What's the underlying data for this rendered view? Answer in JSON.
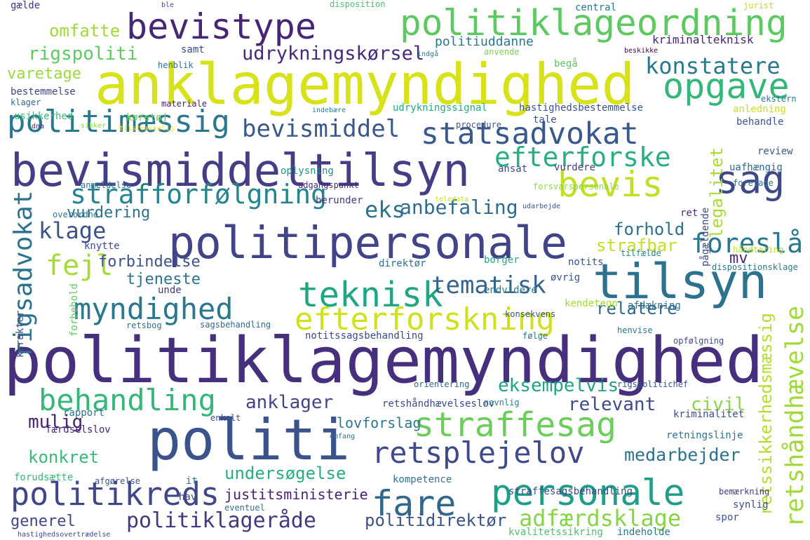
{
  "words": [
    "anklagemyndighed",
    "politiklagemyndighed",
    "politi",
    "bevismiddeltilsyn",
    "politipersonale",
    "tilsyn",
    "politiklageordning",
    "bevistype",
    "opgave",
    "statsadvokat",
    "teknisk",
    "straffesag",
    "personale",
    "fare",
    "retsplejelov",
    "politikreds",
    "sag",
    "bevis",
    "fejl",
    "myndighed",
    "efterforskning",
    "behandling",
    "konstatere",
    "politimæssig",
    "efterforske",
    "strafforfølgning",
    "foreslå",
    "tematisk",
    "rigsadvokat",
    "retshåndhævelse",
    "retssikkerhedsmæssig",
    "legalitet",
    "bevismiddel",
    "eks",
    "klage",
    "anbefaling",
    "udrykningskørsel",
    "omfatte",
    "rigspoliti",
    "varetage",
    "anklager",
    "eksempelvis",
    "relevant",
    "civil",
    "mulig",
    "undersøgelse",
    "medarbejder",
    "politiklageråde",
    "adfærdsklage",
    "politidirektør",
    "justitsministerie",
    "generel",
    "konkret",
    "relatere",
    "vurdering",
    "forhold",
    "strafbar",
    "forbindelse",
    "tjeneste",
    "lovforslag",
    "kriminalteknisk",
    "politiuddanne",
    "mv",
    "gælde",
    "ble",
    "disposition",
    "central",
    "jurist",
    "samt",
    "henblik",
    "indgå",
    "anvende",
    "begå",
    "beskikke",
    "bestemmelse",
    "klager",
    "materiale",
    "indebære",
    "udrykningssignal",
    "hastighedsbestemmelse",
    "anledning",
    "procedure",
    "tale",
    "usikkerhed",
    "køretøj",
    "dna",
    "sikker",
    "tilstrækkelig",
    "behandle",
    "ekstern",
    "review",
    "vurdere",
    "uafhængig",
    "ansat",
    "oplysning",
    "udgangspunkt",
    "anmeldelse",
    "forsvarspersonale",
    "foretage",
    "herunder",
    "udarbejde",
    "teledata",
    "ret",
    "overordne",
    "knytte",
    "direktør",
    "notits",
    "borger",
    "tilfælde",
    "håndtering",
    "dispositionsklage",
    "øvrig",
    "unde",
    "kendetegn",
    "endvidere",
    "afdækning",
    "konsekvens",
    "sagsbehandling",
    "retsbog",
    "henvise",
    "notitssagsbehandling",
    "følge",
    "opfølgning",
    "orientering",
    "rigspolitichef",
    "retshåndhævelseslov",
    "navnlig",
    "rapport",
    "enkelt",
    "færdselslov",
    "omfang",
    "kriminalitet",
    "retningslinje",
    "forudsætte",
    "afgørelse",
    "it",
    "hav",
    "kompetence",
    "straffesagsbehandling",
    "bemærkning",
    "synlig",
    "spor",
    "eventuel",
    "indeholde",
    "kvalitetssikring",
    "hastighedsovertrædelse",
    "karakter",
    "pågældende",
    "forbehold"
  ]
}
